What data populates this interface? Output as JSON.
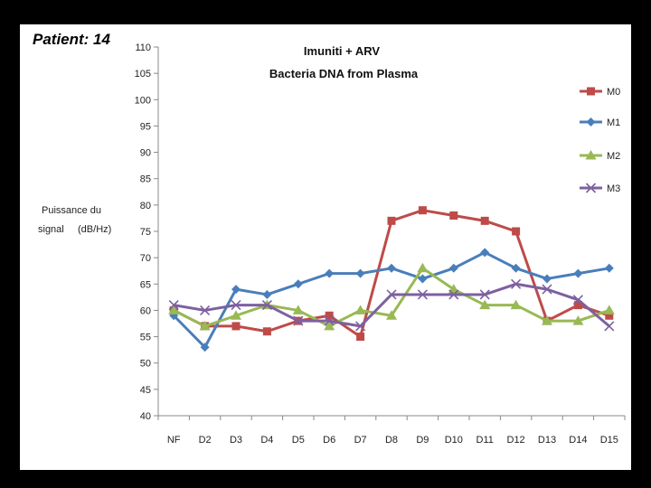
{
  "slide": {
    "patient_label": "Patient: 14"
  },
  "chart_data": {
    "type": "line",
    "title": "Imuniti + ARV",
    "subtitle": "Bacteria DNA from Plasma",
    "ylabel_line1": "Puissance du",
    "ylabel_line2": "signal     (dB/Hz)",
    "xlabel": "",
    "ylim": [
      40,
      110
    ],
    "yticks": [
      40,
      45,
      50,
      55,
      60,
      65,
      70,
      75,
      80,
      85,
      90,
      95,
      100,
      105,
      110
    ],
    "categories": [
      "NF",
      "D2",
      "D3",
      "D4",
      "D5",
      "D6",
      "D7",
      "D8",
      "D9",
      "D10",
      "D11",
      "D12",
      "D13",
      "D14",
      "D15"
    ],
    "series": [
      {
        "name": "M0",
        "color": "#BE4B48",
        "marker": "square",
        "values": [
          60,
          57,
          57,
          56,
          58,
          59,
          55,
          77,
          79,
          78,
          77,
          75,
          58,
          61,
          59
        ]
      },
      {
        "name": "M1",
        "color": "#4A7EBB",
        "marker": "diamond",
        "values": [
          59,
          53,
          64,
          63,
          65,
          67,
          67,
          68,
          66,
          68,
          71,
          68,
          66,
          67,
          68
        ]
      },
      {
        "name": "M2",
        "color": "#98B954",
        "marker": "triangle",
        "values": [
          60,
          57,
          59,
          61,
          60,
          57,
          60,
          59,
          68,
          64,
          61,
          61,
          58,
          58,
          60
        ]
      },
      {
        "name": "M3",
        "color": "#7D60A0",
        "marker": "x",
        "values": [
          61,
          60,
          61,
          61,
          58,
          58,
          57,
          63,
          63,
          63,
          63,
          65,
          64,
          62,
          57
        ]
      }
    ]
  }
}
